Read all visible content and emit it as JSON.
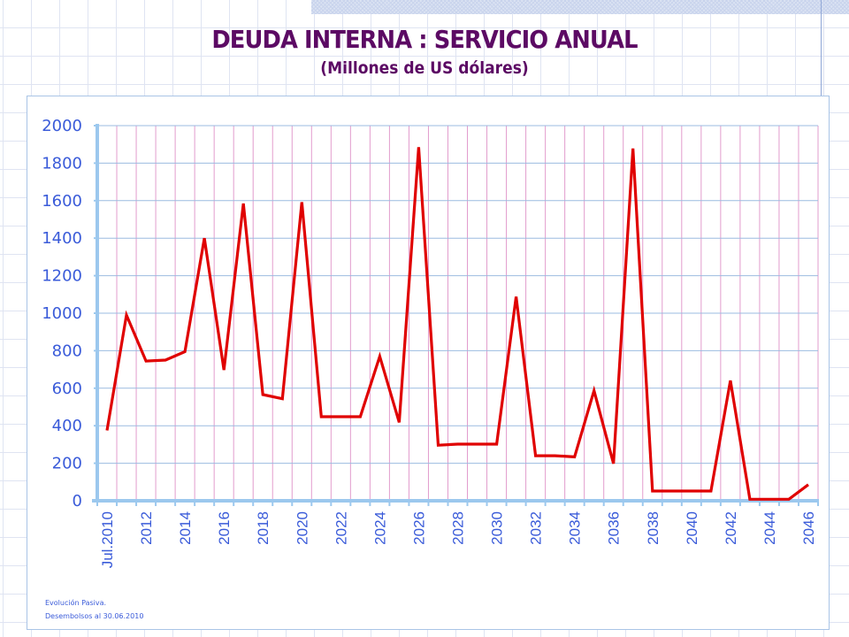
{
  "page": {
    "title": "DEUDA INTERNA : SERVICIO ANUAL",
    "subtitle": "(Millones de US dólares)",
    "footnotes": [
      "Evolución Pasiva.",
      "Desembolsos al 30.06.2010"
    ]
  },
  "colors": {
    "title": "#5c0a64",
    "series_line": "#e00000",
    "axis": "#9cc8ee",
    "tick_labels": "#3a5bd9",
    "h_grid": "#9bbbe0",
    "v_grid": "#e29ccd"
  },
  "chart_data": {
    "type": "line",
    "title": "DEUDA INTERNA : SERVICIO ANUAL",
    "subtitle": "(Millones de US dólares)",
    "xlabel": "",
    "ylabel": "",
    "ylim": [
      0,
      2000
    ],
    "yticks": [
      0,
      200,
      400,
      600,
      800,
      1000,
      1200,
      1400,
      1600,
      1800,
      2000
    ],
    "grid": true,
    "legend": "none",
    "categories": [
      "Jul.2010",
      "2011",
      "2012",
      "2013",
      "2014",
      "2015",
      "2016",
      "2017",
      "2018",
      "2019",
      "2020",
      "2021",
      "2022",
      "2023",
      "2024",
      "2025",
      "2026",
      "2027",
      "2028",
      "2029",
      "2030",
      "2031",
      "2032",
      "2033",
      "2034",
      "2035",
      "2036",
      "2037",
      "2038",
      "2039",
      "2040",
      "2041",
      "2042",
      "2043",
      "2044",
      "2045",
      "2046"
    ],
    "xtick_labels": [
      "Jul.2010",
      "",
      "2012",
      "",
      "2014",
      "",
      "2016",
      "",
      "2018",
      "",
      "2020",
      "",
      "2022",
      "",
      "2024",
      "",
      "2026",
      "",
      "2028",
      "",
      "2030",
      "",
      "2032",
      "",
      "2034",
      "",
      "2036",
      "",
      "2038",
      "",
      "2040",
      "",
      "2042",
      "",
      "2044",
      "",
      "2046"
    ],
    "series": [
      {
        "name": "Servicio anual",
        "values": [
          375,
          990,
          745,
          750,
          795,
          1400,
          697,
          1585,
          566,
          544,
          1592,
          448,
          448,
          448,
          770,
          418,
          1885,
          296,
          302,
          302,
          302,
          1088,
          240,
          240,
          234,
          587,
          198,
          1878,
          52,
          52,
          52,
          52,
          641,
          8,
          8,
          8,
          86
        ]
      }
    ]
  }
}
